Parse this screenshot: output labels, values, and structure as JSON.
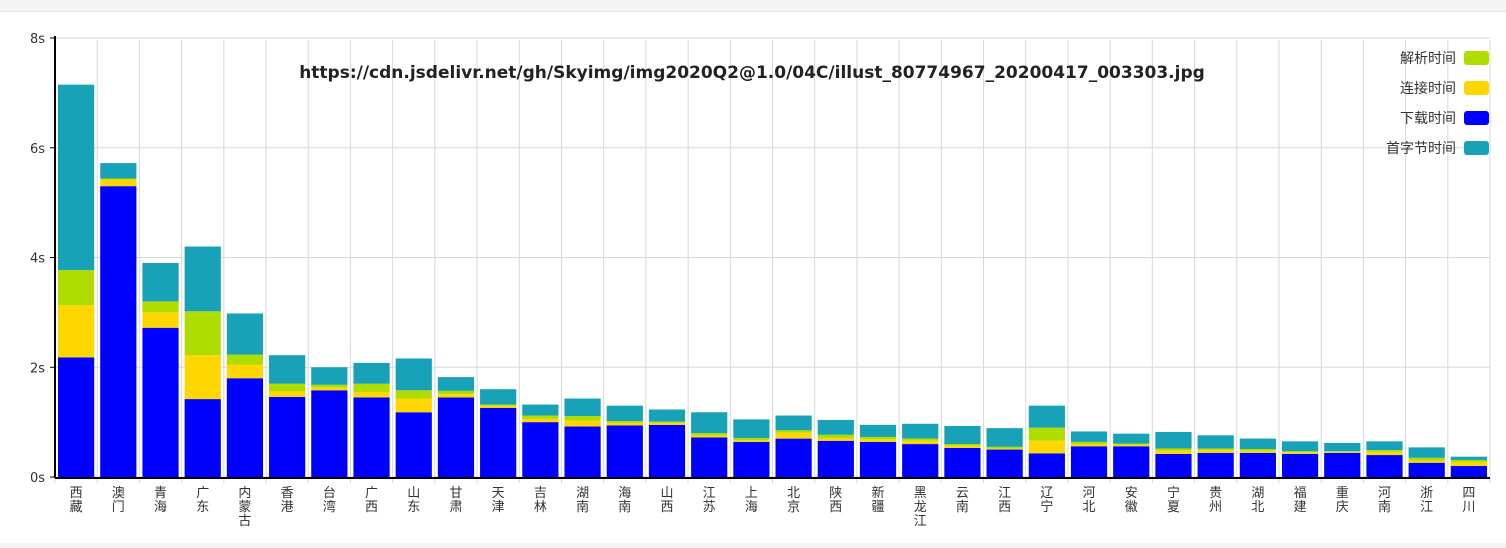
{
  "chart_data": {
    "type": "bar",
    "stacked": true,
    "title": "https://cdn.jsdelivr.net/gh/Skyimg/img2020Q2@1.0/04C/illust_80774967_20200417_003303.jpg",
    "xlabel": "",
    "ylabel": "",
    "ylim": [
      0,
      8
    ],
    "y_ticks": [
      "0s",
      "2s",
      "4s",
      "6s",
      "8s"
    ],
    "grid": true,
    "legend_position": "top-right",
    "categories": [
      "西藏",
      "澳门",
      "青海",
      "广东",
      "内蒙古",
      "香港",
      "台湾",
      "广西",
      "山东",
      "甘肃",
      "天津",
      "吉林",
      "湖南",
      "海南",
      "山西",
      "江苏",
      "上海",
      "北京",
      "陕西",
      "新疆",
      "黑龙江",
      "云南",
      "江西",
      "辽宁",
      "河北",
      "安徽",
      "宁夏",
      "贵州",
      "湖北",
      "福建",
      "重庆",
      "河南",
      "浙江",
      "四川"
    ],
    "series": [
      {
        "name": "下载时间",
        "color": "#0000ff",
        "values": [
          2.18,
          5.3,
          2.72,
          1.42,
          1.8,
          1.46,
          1.58,
          1.45,
          1.18,
          1.45,
          1.26,
          1.0,
          0.92,
          0.94,
          0.95,
          0.72,
          0.64,
          0.7,
          0.66,
          0.64,
          0.6,
          0.53,
          0.5,
          0.43,
          0.56,
          0.56,
          0.42,
          0.44,
          0.44,
          0.42,
          0.44,
          0.4,
          0.26,
          0.2
        ]
      },
      {
        "name": "连接时间",
        "color": "#ffd700",
        "values": [
          0.95,
          0.12,
          0.28,
          0.8,
          0.25,
          0.1,
          0.05,
          0.1,
          0.25,
          0.06,
          0.04,
          0.06,
          0.11,
          0.05,
          0.04,
          0.04,
          0.03,
          0.11,
          0.05,
          0.05,
          0.06,
          0.04,
          0.02,
          0.23,
          0.04,
          0.03,
          0.06,
          0.05,
          0.04,
          0.03,
          0.02,
          0.06,
          0.04,
          0.07
        ]
      },
      {
        "name": "解析时间",
        "color": "#b0dd00",
        "values": [
          0.64,
          0.02,
          0.2,
          0.8,
          0.18,
          0.14,
          0.05,
          0.15,
          0.15,
          0.06,
          0.02,
          0.06,
          0.08,
          0.03,
          0.02,
          0.04,
          0.04,
          0.04,
          0.06,
          0.04,
          0.04,
          0.03,
          0.03,
          0.24,
          0.04,
          0.02,
          0.04,
          0.03,
          0.03,
          0.02,
          0.01,
          0.03,
          0.05,
          0.04
        ]
      },
      {
        "name": "首字节时间",
        "color": "#17a2b8",
        "values": [
          3.38,
          0.28,
          0.7,
          1.18,
          0.75,
          0.52,
          0.32,
          0.38,
          0.58,
          0.25,
          0.28,
          0.2,
          0.32,
          0.28,
          0.22,
          0.38,
          0.34,
          0.27,
          0.27,
          0.22,
          0.27,
          0.33,
          0.34,
          0.4,
          0.19,
          0.18,
          0.3,
          0.24,
          0.19,
          0.18,
          0.15,
          0.16,
          0.19,
          0.06
        ]
      }
    ]
  }
}
